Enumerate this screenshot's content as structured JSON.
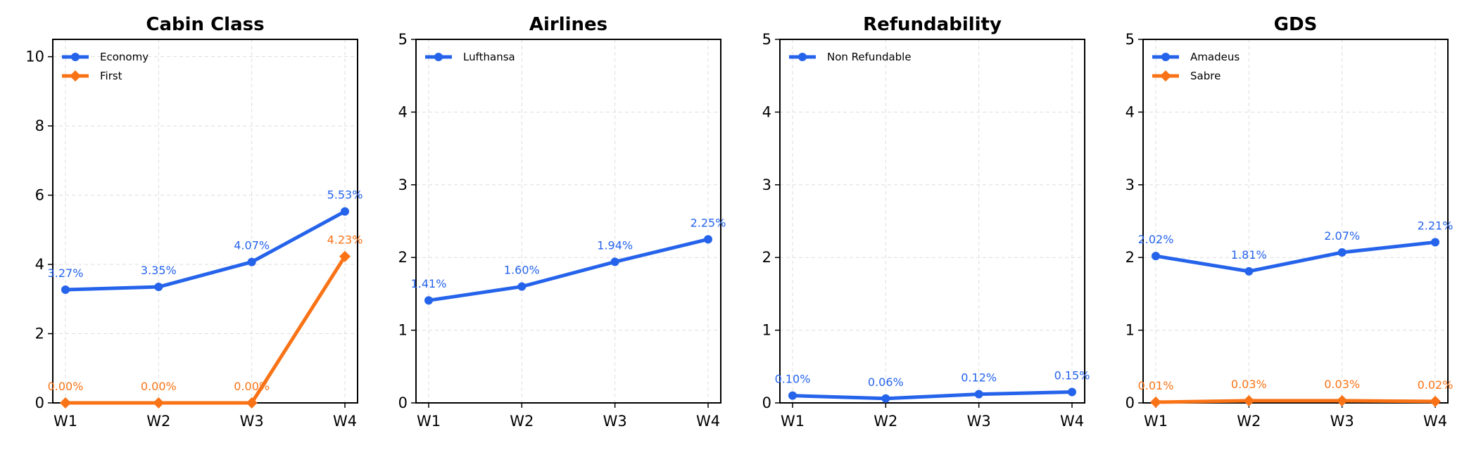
{
  "chart_data": [
    {
      "type": "line",
      "title": "Cabin Class",
      "categories": [
        "W1",
        "W2",
        "W3",
        "W4"
      ],
      "ylim": [
        0,
        10.5
      ],
      "yticks": [
        0,
        2,
        4,
        6,
        8,
        10
      ],
      "grid": true,
      "legend_position": "top-left",
      "series": [
        {
          "name": "Economy",
          "values": [
            3.27,
            3.35,
            4.07,
            5.53
          ],
          "labels": [
            "3.27%",
            "3.35%",
            "4.07%",
            "5.53%"
          ],
          "color": "#2563eb",
          "marker": "circle"
        },
        {
          "name": "First",
          "values": [
            0.0,
            0.0,
            0.0,
            4.23
          ],
          "labels": [
            "0.00%",
            "0.00%",
            "0.00%",
            "4.23%"
          ],
          "color": "#f97316",
          "marker": "diamond"
        }
      ]
    },
    {
      "type": "line",
      "title": "Airlines",
      "categories": [
        "W1",
        "W2",
        "W3",
        "W4"
      ],
      "ylim": [
        0,
        5
      ],
      "yticks": [
        0,
        1,
        2,
        3,
        4,
        5
      ],
      "grid": true,
      "legend_position": "top-left",
      "series": [
        {
          "name": "Lufthansa",
          "values": [
            1.41,
            1.6,
            1.94,
            2.25
          ],
          "labels": [
            "1.41%",
            "1.60%",
            "1.94%",
            "2.25%"
          ],
          "color": "#2563eb",
          "marker": "circle"
        }
      ]
    },
    {
      "type": "line",
      "title": "Refundability",
      "categories": [
        "W1",
        "W2",
        "W3",
        "W4"
      ],
      "ylim": [
        0,
        5
      ],
      "yticks": [
        0,
        1,
        2,
        3,
        4,
        5
      ],
      "grid": true,
      "legend_position": "top-left",
      "series": [
        {
          "name": "Non Refundable",
          "values": [
            0.1,
            0.06,
            0.12,
            0.15
          ],
          "labels": [
            "0.10%",
            "0.06%",
            "0.12%",
            "0.15%"
          ],
          "color": "#2563eb",
          "marker": "circle"
        }
      ]
    },
    {
      "type": "line",
      "title": "GDS",
      "categories": [
        "W1",
        "W2",
        "W3",
        "W4"
      ],
      "ylim": [
        0,
        5
      ],
      "yticks": [
        0,
        1,
        2,
        3,
        4,
        5
      ],
      "grid": true,
      "legend_position": "top-left",
      "series": [
        {
          "name": "Amadeus",
          "values": [
            2.02,
            1.81,
            2.07,
            2.21
          ],
          "labels": [
            "2.02%",
            "1.81%",
            "2.07%",
            "2.21%"
          ],
          "color": "#2563eb",
          "marker": "circle"
        },
        {
          "name": "Sabre",
          "values": [
            0.01,
            0.03,
            0.03,
            0.02
          ],
          "labels": [
            "0.01%",
            "0.03%",
            "0.03%",
            "0.02%"
          ],
          "color": "#f97316",
          "marker": "diamond"
        }
      ]
    }
  ]
}
